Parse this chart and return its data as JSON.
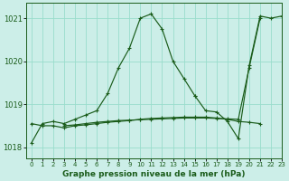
{
  "title": "Graphe pression niveau de la mer (hPa)",
  "background_color": "#cceee8",
  "grid_color": "#99ddcc",
  "line_color": "#1a5c1a",
  "xlim": [
    -0.5,
    23
  ],
  "ylim": [
    1017.75,
    1021.35
  ],
  "yticks": [
    1018,
    1019,
    1020,
    1021
  ],
  "xticks": [
    0,
    1,
    2,
    3,
    4,
    5,
    6,
    7,
    8,
    9,
    10,
    11,
    12,
    13,
    14,
    15,
    16,
    17,
    18,
    19,
    20,
    21,
    22,
    23
  ],
  "series": [
    {
      "x": [
        0,
        1,
        2,
        3,
        4,
        5,
        6,
        7,
        8,
        9,
        10,
        11,
        12,
        13,
        14,
        15
      ],
      "y": [
        1018.1,
        1018.55,
        1018.6,
        1018.55,
        1018.65,
        1018.75,
        1018.85,
        1019.25,
        1019.85,
        1020.3,
        1021.0,
        1021.1,
        1020.75,
        1020.0,
        1019.6,
        1019.2
      ]
    },
    {
      "x": [
        15,
        16,
        17,
        18,
        19,
        20,
        21,
        22,
        23
      ],
      "y": [
        1019.2,
        1018.85,
        1018.82,
        1018.6,
        1018.2,
        1019.9,
        1021.05,
        1021.0,
        1021.05
      ]
    },
    {
      "x": [
        0,
        1,
        2,
        3,
        4,
        5,
        6,
        7,
        8,
        9,
        10,
        11,
        12,
        13,
        14,
        15,
        16,
        17,
        18,
        19,
        20,
        21
      ],
      "y": [
        1018.55,
        1018.5,
        1018.5,
        1018.45,
        1018.5,
        1018.52,
        1018.55,
        1018.58,
        1018.6,
        1018.62,
        1018.65,
        1018.67,
        1018.68,
        1018.69,
        1018.7,
        1018.7,
        1018.7,
        1018.68,
        1018.65,
        1018.6,
        1018.58,
        1018.55
      ]
    },
    {
      "x": [
        3,
        4,
        5,
        6,
        7,
        8,
        9,
        10,
        11,
        12,
        13,
        14,
        15,
        16,
        17,
        18,
        19,
        20,
        21
      ],
      "y": [
        1018.5,
        1018.52,
        1018.55,
        1018.58,
        1018.6,
        1018.62,
        1018.63,
        1018.64,
        1018.65,
        1018.66,
        1018.67,
        1018.68,
        1018.68,
        1018.68,
        1018.67,
        1018.66,
        1018.65,
        1019.85,
        1021.0
      ]
    }
  ]
}
